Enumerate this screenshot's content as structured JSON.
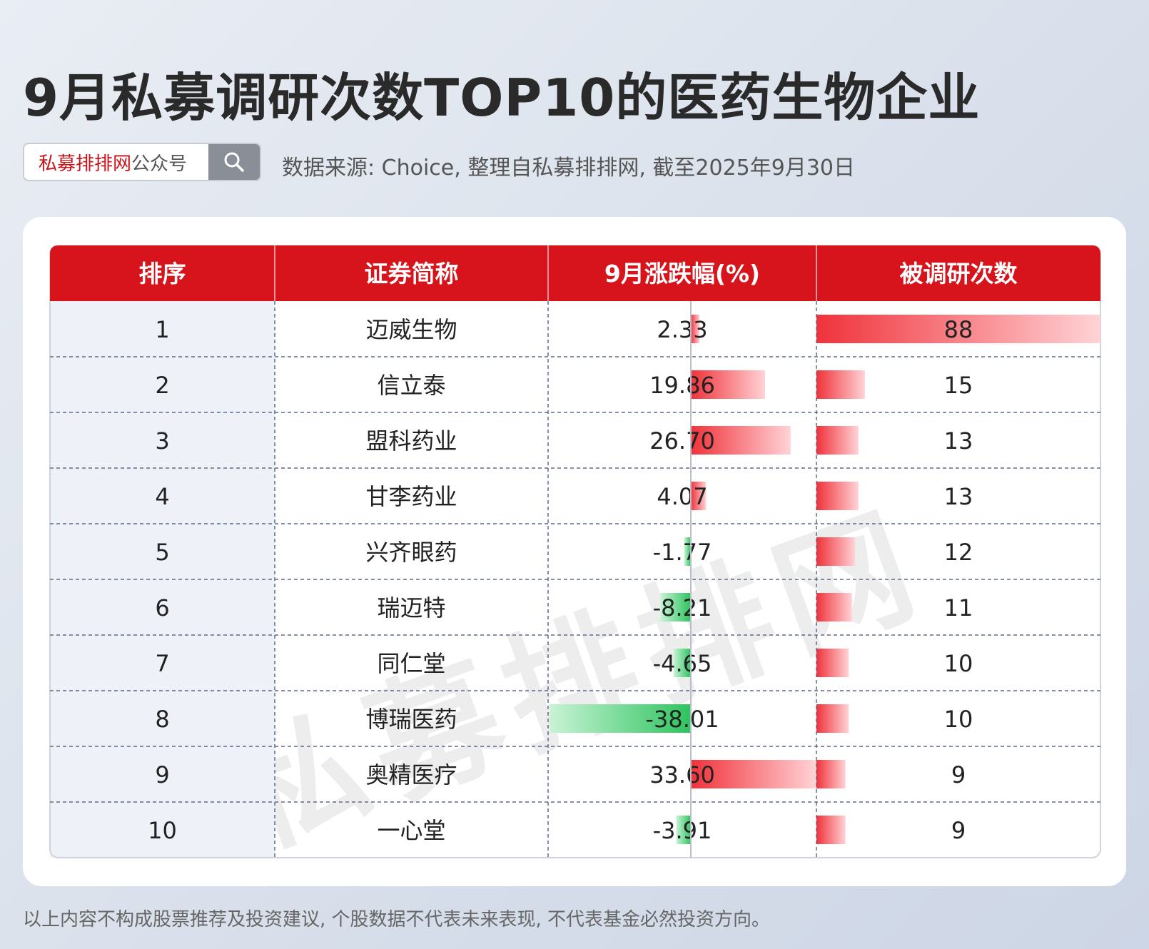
{
  "title": "9月私募调研次数TOP10的医药生物企业",
  "search": {
    "brand": "私募排排网",
    "suffix": "公众号"
  },
  "source": "数据来源: Choice, 整理自私募排排网, 截至2025年9月30日",
  "disclaimer": "以上内容不构成股票推荐及投资建议, 个股数据不代表未来表现, 不代表基金必然投资方向。",
  "watermark": "私募排排网",
  "colors": {
    "header_red": "#d7141b",
    "bar_red": "#f0323a",
    "bar_green": "#2ec35f",
    "rank_bg": "#eef2f8"
  },
  "chart_data": {
    "type": "table",
    "columns": [
      "排序",
      "证券简称",
      "9月涨跌幅(%)",
      "被调研次数"
    ],
    "rows": [
      {
        "rank": "1",
        "name": "迈威生物",
        "change": 2.33,
        "change_label": "2.33",
        "count": 88,
        "count_label": "88"
      },
      {
        "rank": "2",
        "name": "信立泰",
        "change": 19.86,
        "change_label": "19.86",
        "count": 15,
        "count_label": "15"
      },
      {
        "rank": "3",
        "name": "盟科药业",
        "change": 26.7,
        "change_label": "26.70",
        "count": 13,
        "count_label": "13"
      },
      {
        "rank": "4",
        "name": "甘李药业",
        "change": 4.07,
        "change_label": "4.07",
        "count": 13,
        "count_label": "13"
      },
      {
        "rank": "5",
        "name": "兴齐眼药",
        "change": -1.77,
        "change_label": "-1.77",
        "count": 12,
        "count_label": "12"
      },
      {
        "rank": "6",
        "name": "瑞迈特",
        "change": -8.21,
        "change_label": "-8.21",
        "count": 11,
        "count_label": "11"
      },
      {
        "rank": "7",
        "name": "同仁堂",
        "change": -4.65,
        "change_label": "-4.65",
        "count": 10,
        "count_label": "10"
      },
      {
        "rank": "8",
        "name": "博瑞医药",
        "change": -38.01,
        "change_label": "-38.01",
        "count": 10,
        "count_label": "10"
      },
      {
        "rank": "9",
        "name": "奥精医疗",
        "change": 33.6,
        "change_label": "33.60",
        "count": 9,
        "count_label": "9"
      },
      {
        "rank": "10",
        "name": "一心堂",
        "change": -3.91,
        "change_label": "-3.91",
        "count": 9,
        "count_label": "9"
      }
    ]
  }
}
